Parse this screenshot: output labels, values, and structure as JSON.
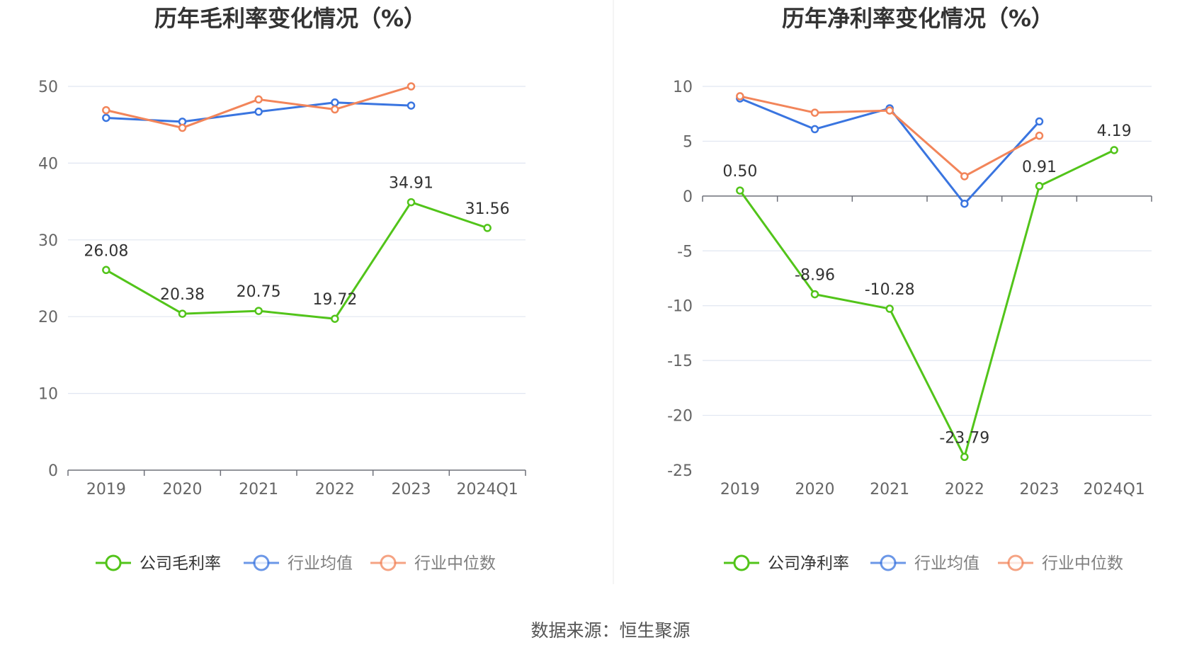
{
  "source_label": "数据来源：恒生聚源",
  "chart_data": [
    {
      "type": "line",
      "title": "历年毛利率变化情况（%）",
      "categories": [
        "2019",
        "2020",
        "2021",
        "2022",
        "2023",
        "2024Q1"
      ],
      "ylim": [
        0,
        50
      ],
      "yticks": [
        0,
        10,
        20,
        30,
        40,
        50
      ],
      "grid": true,
      "legend_position": "bottom",
      "series": [
        {
          "name": "公司毛利率",
          "color": "#52c41a",
          "values": [
            26.08,
            20.38,
            20.75,
            19.72,
            34.91,
            31.56
          ],
          "labels": [
            "26.08",
            "20.38",
            "20.75",
            "19.72",
            "34.91",
            "31.56"
          ]
        },
        {
          "name": "行业均值",
          "color": "#3a75e0",
          "values": [
            45.9,
            45.4,
            46.7,
            47.9,
            47.5,
            null
          ]
        },
        {
          "name": "行业中位数",
          "color": "#f2855a",
          "values": [
            46.9,
            44.6,
            48.3,
            47.0,
            50.0,
            null
          ]
        }
      ]
    },
    {
      "type": "line",
      "title": "历年净利率变化情况（%）",
      "categories": [
        "2019",
        "2020",
        "2021",
        "2022",
        "2023",
        "2024Q1"
      ],
      "ylim": [
        -25,
        10
      ],
      "yticks": [
        -25,
        -20,
        -15,
        -10,
        -5,
        0,
        5,
        10
      ],
      "grid": true,
      "legend_position": "bottom",
      "series": [
        {
          "name": "公司净利率",
          "color": "#52c41a",
          "values": [
            0.5,
            -8.96,
            -10.28,
            -23.79,
            0.91,
            4.19
          ],
          "labels": [
            "0.50",
            "-8.96",
            "-10.28",
            "-23.79",
            "0.91",
            "4.19"
          ]
        },
        {
          "name": "行业均值",
          "color": "#3a75e0",
          "values": [
            8.9,
            6.1,
            8.0,
            -0.7,
            6.8,
            null
          ]
        },
        {
          "name": "行业中位数",
          "color": "#f2855a",
          "values": [
            9.1,
            7.6,
            7.8,
            1.8,
            5.5,
            null
          ]
        }
      ]
    }
  ]
}
